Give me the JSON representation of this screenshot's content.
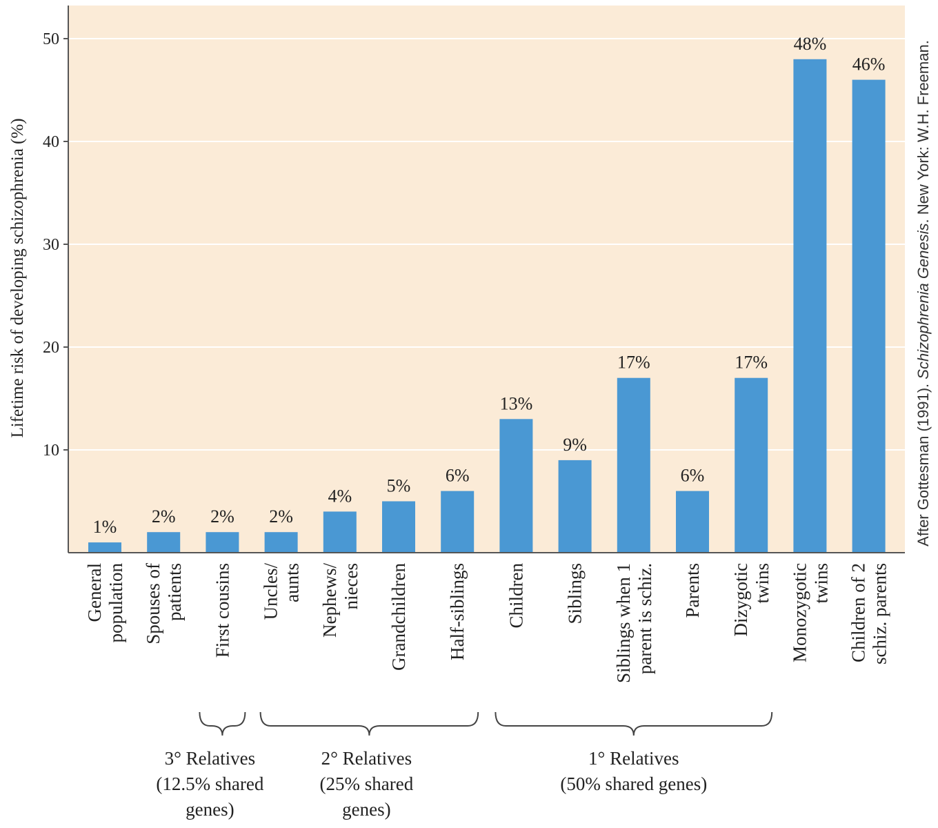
{
  "chart_data": {
    "type": "bar",
    "ylabel": "Lifetime risk of developing schizophrenia (%)",
    "ylim": [
      0,
      54
    ],
    "yticks": [
      10,
      20,
      30,
      40,
      50
    ],
    "grid": true,
    "colors": {
      "background": "#fbebd7",
      "bar": "#4a98d3",
      "axis": "#555555",
      "grid": "#ffffff"
    },
    "categories": [
      [
        "General",
        "population"
      ],
      [
        "Spouses of",
        "patients"
      ],
      [
        "First cousins"
      ],
      [
        "Uncles/",
        "aunts"
      ],
      [
        "Nephews/",
        "nieces"
      ],
      [
        "Grandchildren"
      ],
      [
        "Half-siblings"
      ],
      [
        "Children"
      ],
      [
        "Siblings"
      ],
      [
        "Siblings when 1",
        "parent is schiz."
      ],
      [
        "Parents"
      ],
      [
        "Dizygotic",
        "twins"
      ],
      [
        "Monozygotic",
        "twins"
      ],
      [
        "Children of 2",
        "schiz. parents"
      ]
    ],
    "values": [
      1,
      2,
      2,
      2,
      4,
      5,
      6,
      13,
      9,
      17,
      6,
      17,
      48,
      46
    ],
    "value_labels": [
      "1%",
      "2%",
      "2%",
      "2%",
      "4%",
      "5%",
      "6%",
      "13%",
      "9%",
      "17%",
      "6%",
      "17%",
      "48%",
      "46%"
    ],
    "groups": [
      {
        "label": [
          "3° Relatives",
          "(12.5% shared",
          "genes)"
        ],
        "from": 2,
        "to": 2
      },
      {
        "label": [
          "2° Relatives",
          "(25% shared",
          "genes)"
        ],
        "from": 3,
        "to": 6
      },
      {
        "label": [
          "1° Relatives",
          "(50% shared genes)"
        ],
        "from": 7,
        "to": 11
      }
    ],
    "source": {
      "prefix": "After Gottesman (1991). ",
      "title": "Schizophrenia Genesis",
      "suffix": ". New York: W.H. Freeman."
    }
  }
}
